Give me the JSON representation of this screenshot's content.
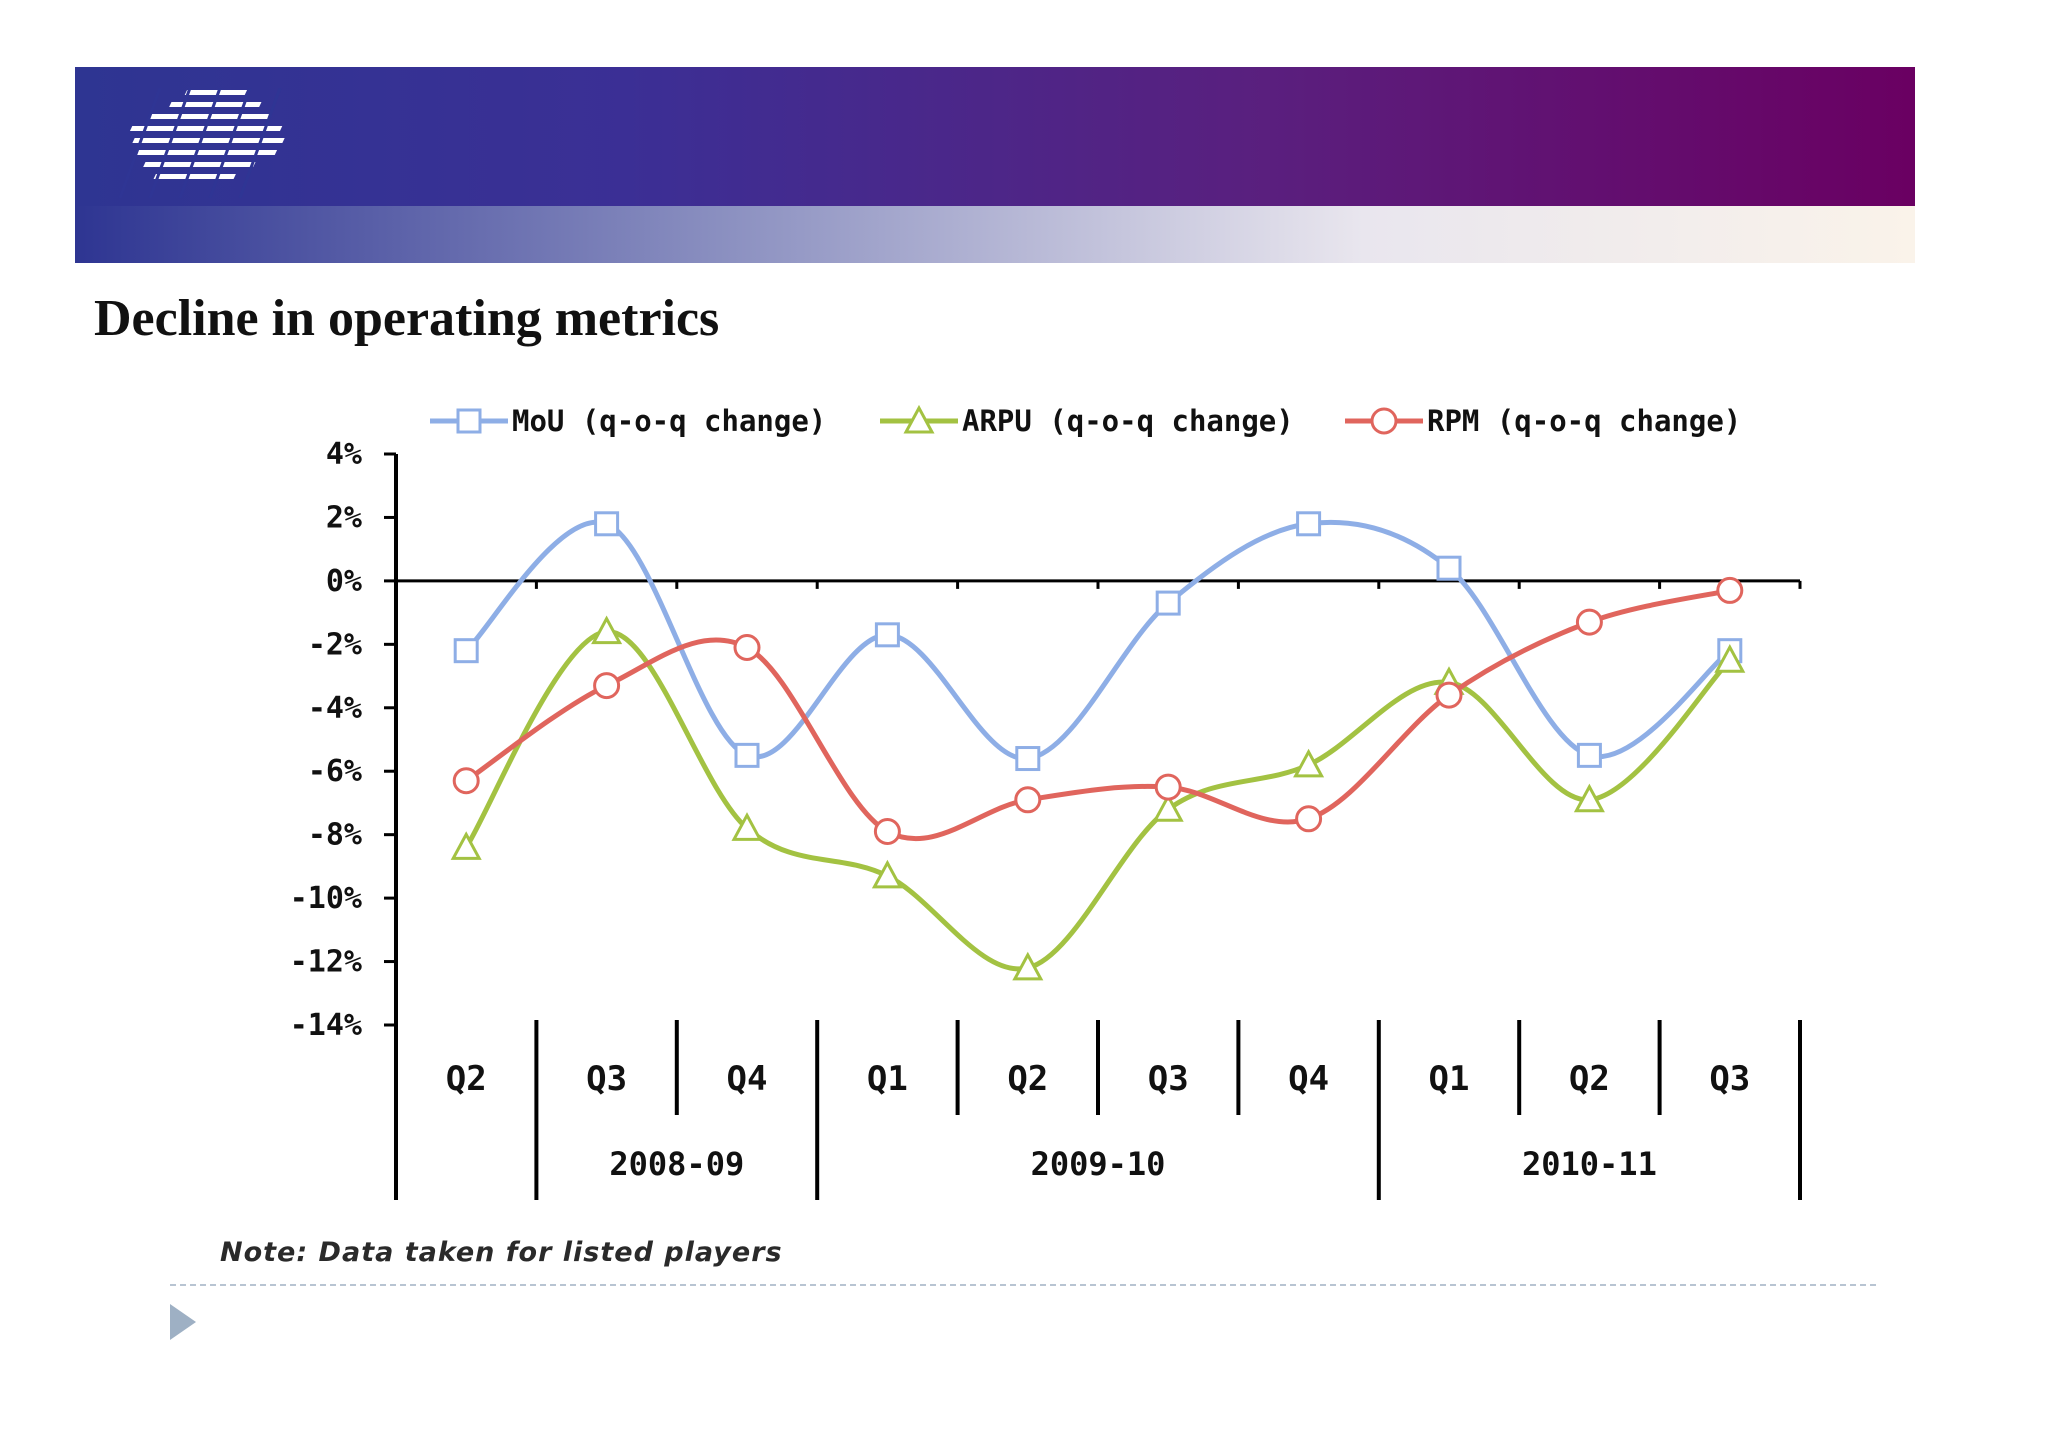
{
  "slide": {
    "title": "Decline in operating metrics",
    "note": "Note: Data taken for listed players",
    "logo_icon": "striped-logo-icon",
    "bullet_icon": "triangle-bullet-icon"
  },
  "chart_data": {
    "type": "line",
    "title": "",
    "xlabel": "",
    "ylabel": "",
    "ylim": [
      -14,
      4
    ],
    "ytick_step": 2,
    "yticks": [
      "4%",
      "2%",
      "0%",
      "-2%",
      "-4%",
      "-6%",
      "-8%",
      "-10%",
      "-12%",
      "-14%"
    ],
    "categories": [
      "Q2",
      "Q3",
      "Q4",
      "Q1",
      "Q2",
      "Q3",
      "Q4",
      "Q1",
      "Q2",
      "Q3"
    ],
    "category_groups": [
      {
        "label": "2008-09",
        "start": 1,
        "end": 2
      },
      {
        "label": "2009-10",
        "start": 3,
        "end": 6
      },
      {
        "label": "2010-11",
        "start": 7,
        "end": 9
      }
    ],
    "legend_position": "top",
    "grid": false,
    "series": [
      {
        "name": "MoU (q-o-q change)",
        "color": "#8eaee6",
        "marker": "square",
        "values": [
          -2.2,
          1.8,
          -5.5,
          -1.7,
          -5.6,
          -0.7,
          1.8,
          0.4,
          -5.5,
          -2.2
        ]
      },
      {
        "name": "ARPU (q-o-q change)",
        "color": "#a3c242",
        "marker": "triangle",
        "values": [
          -8.4,
          -1.6,
          -7.8,
          -9.3,
          -12.2,
          -7.2,
          -5.8,
          -3.2,
          -6.9,
          -2.5
        ]
      },
      {
        "name": "RPM (q-o-q change)",
        "color": "#e0655d",
        "marker": "circle",
        "values": [
          -6.3,
          -3.3,
          -2.1,
          -7.9,
          -6.9,
          -6.5,
          -7.5,
          -3.6,
          -1.3,
          -0.3
        ]
      }
    ]
  }
}
